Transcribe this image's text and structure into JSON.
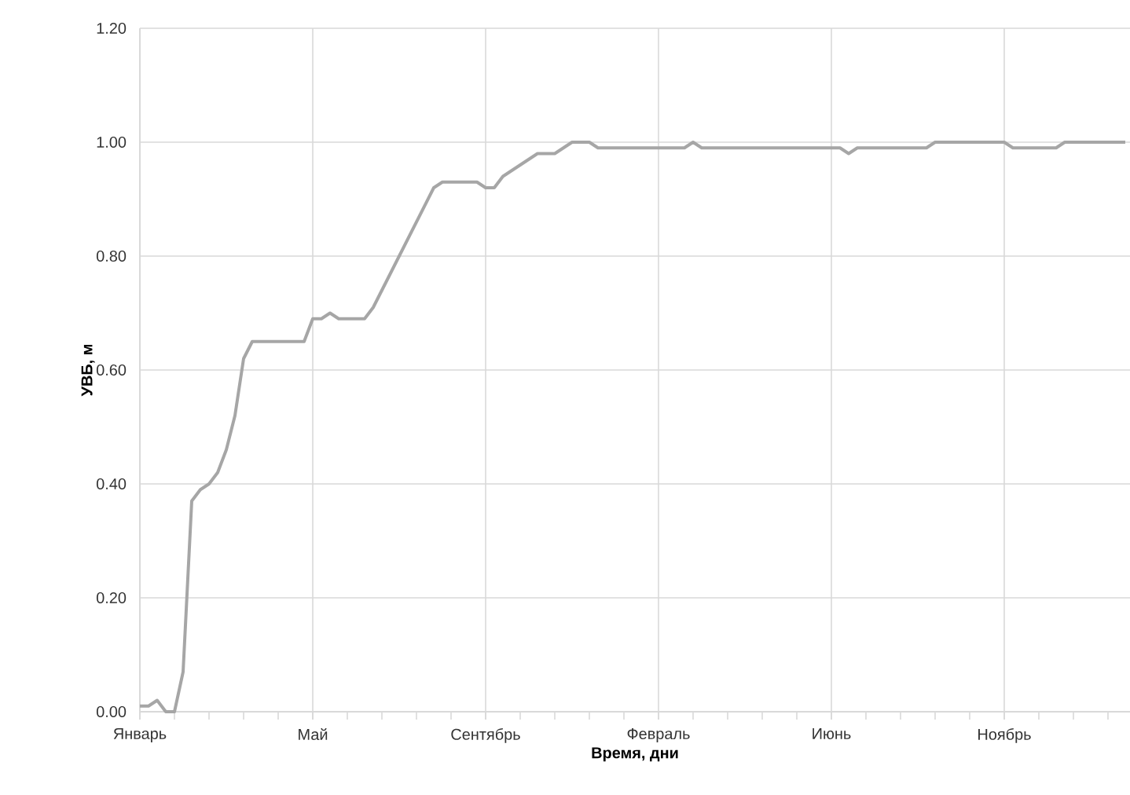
{
  "chart_data": {
    "type": "line",
    "xlabel": "Время, дни",
    "ylabel": "УВБ, м",
    "color": "#a6a6a6",
    "grid": true,
    "ylim": [
      0,
      1.2
    ],
    "yticks": [
      {
        "value": 0,
        "label": "0.00"
      },
      {
        "value": 0.2,
        "label": "0.20"
      },
      {
        "value": 0.4,
        "label": "0.40"
      },
      {
        "value": 0.6,
        "label": "0.60"
      },
      {
        "value": 0.8,
        "label": "0.80"
      },
      {
        "value": 1.0,
        "label": "1.00"
      },
      {
        "value": 1.2,
        "label": "1.20"
      }
    ],
    "categories": [
      "Январь",
      null,
      null,
      null,
      null,
      null,
      null,
      null,
      null,
      null,
      null,
      null,
      null,
      null,
      null,
      null,
      null,
      null,
      null,
      null,
      "Май",
      null,
      null,
      null,
      null,
      null,
      null,
      null,
      null,
      null,
      null,
      null,
      null,
      null,
      null,
      null,
      null,
      null,
      null,
      null,
      "Сентябрь",
      null,
      null,
      null,
      null,
      null,
      null,
      null,
      null,
      null,
      null,
      null,
      null,
      null,
      null,
      null,
      null,
      null,
      null,
      null,
      "Февраль",
      null,
      null,
      null,
      null,
      null,
      null,
      null,
      null,
      null,
      null,
      null,
      null,
      null,
      null,
      null,
      null,
      null,
      null,
      null,
      "Июнь",
      null,
      null,
      null,
      null,
      null,
      null,
      null,
      null,
      null,
      null,
      null,
      null,
      null,
      null,
      null,
      null,
      null,
      null,
      null,
      "Ноябрь",
      null,
      null,
      null,
      null,
      null,
      null,
      null,
      null,
      null,
      null,
      null,
      null,
      null,
      null
    ],
    "values": [
      0.01,
      0.01,
      0.02,
      0.0,
      0.0,
      0.07,
      0.37,
      0.39,
      0.4,
      0.42,
      0.46,
      0.52,
      0.62,
      0.65,
      0.65,
      0.65,
      0.65,
      0.65,
      0.65,
      0.65,
      0.69,
      0.69,
      0.7,
      0.69,
      0.69,
      0.69,
      0.69,
      0.71,
      0.74,
      0.77,
      0.8,
      0.83,
      0.86,
      0.89,
      0.92,
      0.93,
      0.93,
      0.93,
      0.93,
      0.93,
      0.92,
      0.92,
      0.94,
      0.95,
      0.96,
      0.97,
      0.98,
      0.98,
      0.98,
      0.99,
      1.0,
      1.0,
      1.0,
      0.99,
      0.99,
      0.99,
      0.99,
      0.99,
      0.99,
      0.99,
      0.99,
      0.99,
      0.99,
      0.99,
      1.0,
      0.99,
      0.99,
      0.99,
      0.99,
      0.99,
      0.99,
      0.99,
      0.99,
      0.99,
      0.99,
      0.99,
      0.99,
      0.99,
      0.99,
      0.99,
      0.99,
      0.99,
      0.98,
      0.99,
      0.99,
      0.99,
      0.99,
      0.99,
      0.99,
      0.99,
      0.99,
      0.99,
      1.0,
      1.0,
      1.0,
      1.0,
      1.0,
      1.0,
      1.0,
      1.0,
      1.0,
      0.99,
      0.99,
      0.99,
      0.99,
      0.99,
      0.99,
      1.0,
      1.0,
      1.0,
      1.0,
      1.0,
      1.0,
      1.0,
      1.0
    ]
  }
}
